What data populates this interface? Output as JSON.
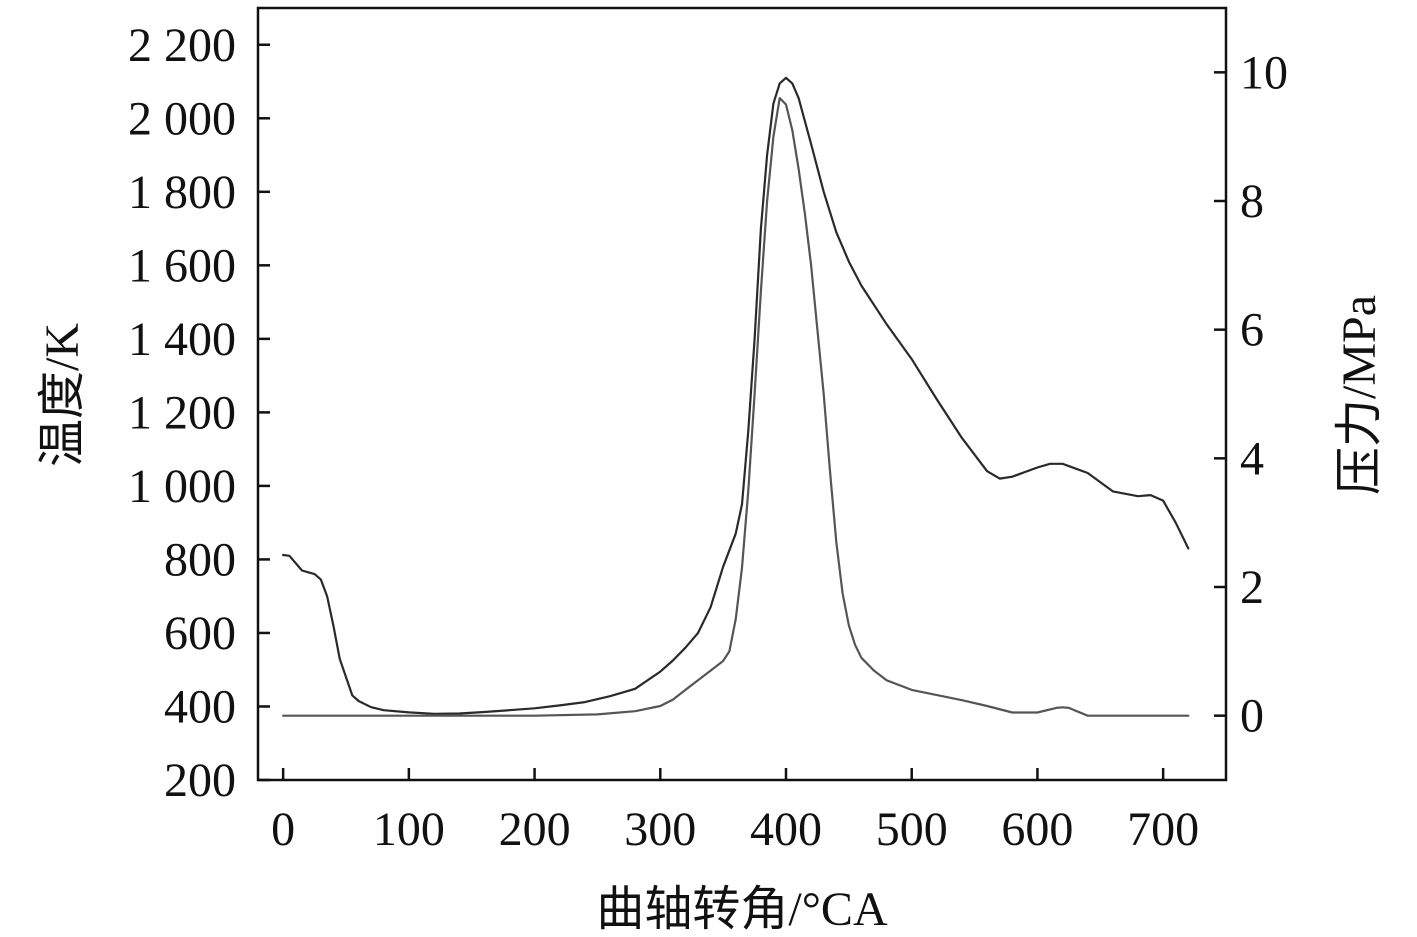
{
  "chart_data": {
    "type": "line",
    "xlabel": "曲轴转角/°CA",
    "ylabel": "温度/K",
    "y2label": "压力/MPa",
    "xlim": [
      -20,
      750
    ],
    "ylim": [
      200,
      2300
    ],
    "y2lim": [
      -1,
      11
    ],
    "xticks": [
      0,
      100,
      200,
      300,
      400,
      500,
      600,
      700
    ],
    "xtick_labels": [
      "0",
      "100",
      "200",
      "300",
      "400",
      "500",
      "600",
      "700"
    ],
    "yticks": [
      200,
      400,
      600,
      800,
      1000,
      1200,
      1400,
      1600,
      1800,
      2000,
      2200
    ],
    "ytick_labels": [
      "200",
      "400",
      "600",
      "800",
      "1 000",
      "1 200",
      "1 400",
      "1 600",
      "1 800",
      "2 000",
      "2 200"
    ],
    "y2ticks": [
      0,
      2,
      4,
      6,
      8,
      10
    ],
    "y2tick_labels": [
      "0",
      "2",
      "4",
      "6",
      "8",
      "10"
    ],
    "grid": false,
    "series": [
      {
        "axis": "left",
        "color": "#2a2a2a",
        "x": [
          0,
          5,
          10,
          15,
          20,
          25,
          30,
          35,
          40,
          45,
          50,
          55,
          60,
          70,
          80,
          100,
          120,
          140,
          160,
          180,
          200,
          220,
          240,
          260,
          280,
          300,
          310,
          320,
          330,
          340,
          350,
          360,
          365,
          370,
          375,
          380,
          385,
          390,
          395,
          400,
          405,
          410,
          420,
          430,
          440,
          450,
          460,
          480,
          500,
          520,
          540,
          560,
          570,
          580,
          600,
          610,
          620,
          640,
          660,
          680,
          690,
          700,
          710,
          720
        ],
        "y": [
          812,
          810,
          790,
          770,
          765,
          760,
          745,
          700,
          620,
          530,
          480,
          430,
          415,
          398,
          390,
          384,
          380,
          381,
          385,
          390,
          395,
          403,
          412,
          428,
          448,
          495,
          525,
          560,
          600,
          670,
          780,
          870,
          950,
          1150,
          1400,
          1700,
          1900,
          2040,
          2095,
          2110,
          2095,
          2055,
          1930,
          1800,
          1690,
          1610,
          1545,
          1440,
          1345,
          1235,
          1130,
          1040,
          1020,
          1025,
          1050,
          1060,
          1060,
          1035,
          985,
          972,
          975,
          960,
          900,
          830
        ]
      },
      {
        "axis": "right",
        "color": "#555555",
        "x": [
          0,
          50,
          100,
          150,
          200,
          250,
          280,
          300,
          310,
          320,
          330,
          340,
          350,
          355,
          360,
          365,
          370,
          375,
          380,
          385,
          390,
          395,
          400,
          405,
          410,
          415,
          420,
          425,
          430,
          435,
          440,
          445,
          450,
          455,
          460,
          470,
          480,
          500,
          520,
          540,
          560,
          580,
          600,
          615,
          620,
          625,
          630,
          640,
          660,
          680,
          700,
          720
        ],
        "y": [
          0.0,
          0.0,
          0.0,
          0.0,
          0.0,
          0.02,
          0.07,
          0.15,
          0.25,
          0.4,
          0.55,
          0.7,
          0.85,
          1.0,
          1.5,
          2.3,
          3.5,
          5.0,
          6.6,
          8.0,
          9.0,
          9.6,
          9.5,
          9.1,
          8.5,
          7.8,
          7.0,
          6.0,
          5.0,
          3.8,
          2.7,
          1.9,
          1.4,
          1.1,
          0.9,
          0.7,
          0.55,
          0.4,
          0.32,
          0.24,
          0.15,
          0.05,
          0.05,
          0.12,
          0.13,
          0.12,
          0.08,
          0.0,
          0.0,
          0.0,
          0.0,
          0.0
        ]
      }
    ]
  }
}
